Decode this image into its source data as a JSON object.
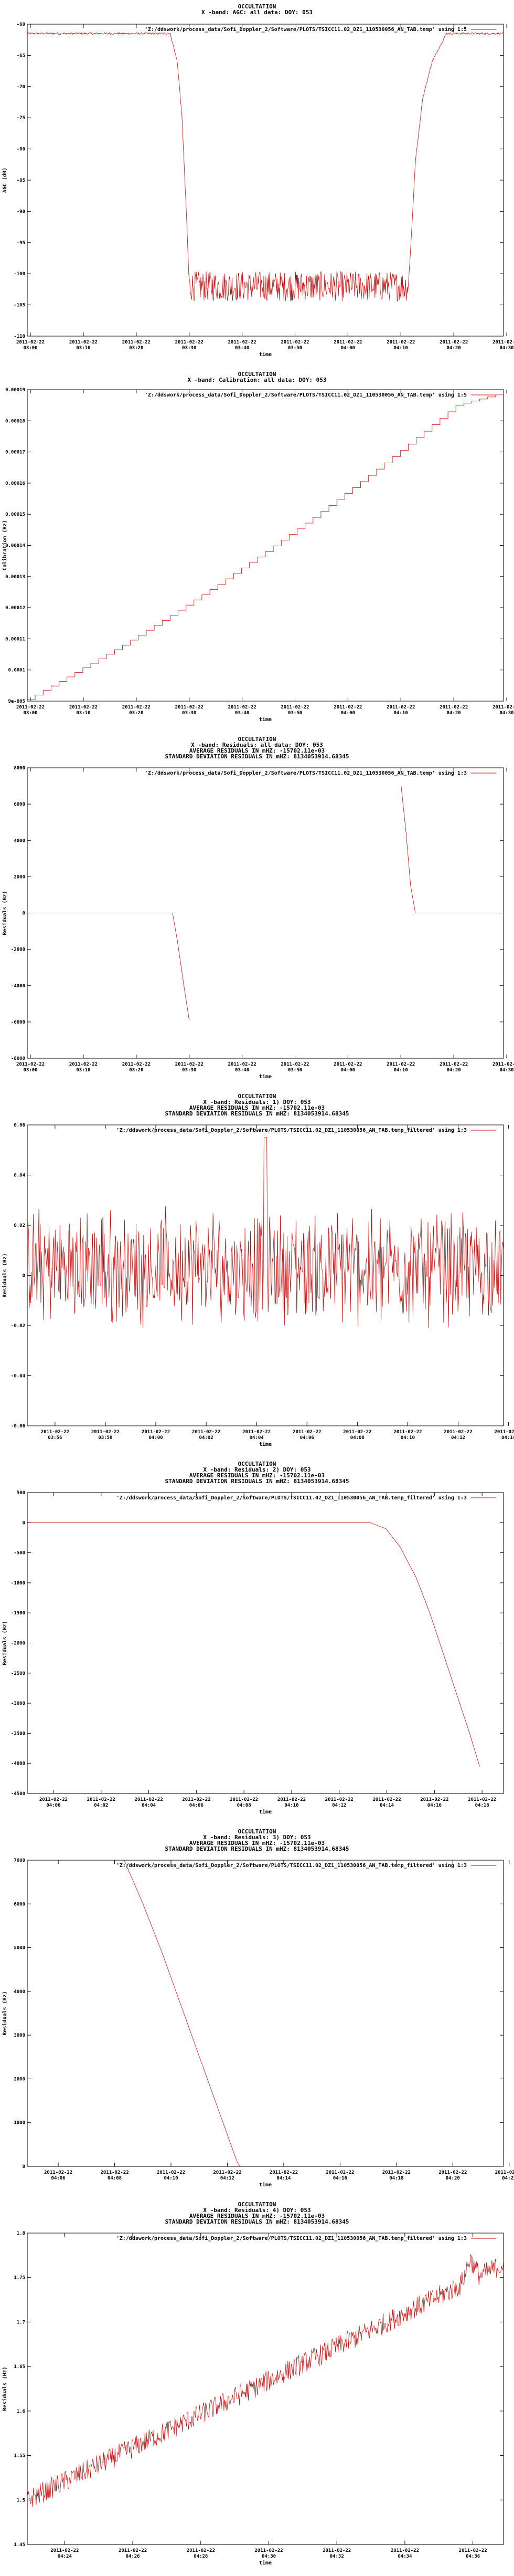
{
  "colors": {
    "series": "#cc0000",
    "axis": "#000000",
    "background": "#ffffff"
  },
  "chart_data": [
    {
      "type": "line",
      "title": [
        "OCCULTATION",
        "X -band: AGC: all data: DOY: 053"
      ],
      "legend": "'Z:/ddswork/process_data/Sofi_Doppler_2/Software/PLOTS/TSICC11.02_DZ1_110530056_AN_TAB.temp' using 1:5",
      "xlabel": "time",
      "ylabel": "AGC (dB)",
      "ylim": [
        -110,
        -60
      ],
      "ytick_labels": [
        "-110",
        "-105",
        "-100",
        "-95",
        "-90",
        "-85",
        "-80",
        "-75",
        "-70",
        "-65",
        "-60"
      ],
      "xtick_labels": [
        [
          "2011-02-22",
          "03:00"
        ],
        [
          "2011-02-22",
          "03:10"
        ],
        [
          "2011-02-22",
          "03:20"
        ],
        [
          "2011-02-22",
          "03:30"
        ],
        [
          "2011-02-22",
          "03:40"
        ],
        [
          "2011-02-22",
          "03:50"
        ],
        [
          "2011-02-22",
          "04:00"
        ],
        [
          "2011-02-22",
          "04:10"
        ],
        [
          "2011-02-22",
          "04:20"
        ],
        [
          "2011-02-22",
          "04:30"
        ]
      ],
      "xrange_minutes": [
        178,
        278
      ],
      "series": [
        {
          "points": [
            [
              178,
              -61.5
            ],
            [
              208,
              -61.5
            ],
            [
              209.5,
              -66
            ],
            [
              210.5,
              -75
            ],
            [
              211.5,
              -92
            ],
            [
              212,
              -102
            ],
            [
              258,
              -102
            ],
            [
              258.5,
              -96
            ],
            [
              259.5,
              -82
            ],
            [
              261,
              -72
            ],
            [
              263,
              -66
            ],
            [
              266,
              -61.5
            ],
            [
              278,
              -61.5
            ]
          ],
          "noise": 1.2,
          "noise_range": [
            212,
            258
          ]
        }
      ]
    },
    {
      "type": "line",
      "title": [
        "OCCULTATION",
        "X -band: Calibration: all data: DOY: 053"
      ],
      "legend": "'Z:/ddswork/process_data/Sofi_Doppler_2/Software/PLOTS/TSICC11.02_DZ1_110530056_AN_TAB.temp' using 1:5",
      "xlabel": "time",
      "ylabel": "Calibration (Hz)",
      "ylim": [
        9e-05,
        0.00019
      ],
      "ytick_labels": [
        "9e-005",
        "0.0001",
        "0.00011",
        "0.00012",
        "0.00013",
        "0.00014",
        "0.00015",
        "0.00016",
        "0.00017",
        "0.00018",
        "0.00019"
      ],
      "xtick_labels": [
        [
          "2011-02-22",
          "03:00"
        ],
        [
          "2011-02-22",
          "03:10"
        ],
        [
          "2011-02-22",
          "03:20"
        ],
        [
          "2011-02-22",
          "03:30"
        ],
        [
          "2011-02-22",
          "03:40"
        ],
        [
          "2011-02-22",
          "03:50"
        ],
        [
          "2011-02-22",
          "04:00"
        ],
        [
          "2011-02-22",
          "04:10"
        ],
        [
          "2011-02-22",
          "04:20"
        ],
        [
          "2011-02-22",
          "04:30"
        ]
      ],
      "xrange_minutes": [
        178,
        278
      ],
      "series": [
        {
          "points": [
            [
              178,
              9.05e-05
            ],
            [
              188,
              9.92e-05
            ],
            [
              198,
              0.000108
            ],
            [
              208,
              0.0001175
            ],
            [
              218,
              0.0001275
            ],
            [
              228,
              0.000138
            ],
            [
              238,
              0.000149
            ],
            [
              248,
              0.0001605
            ],
            [
              258,
              0.0001725
            ],
            [
              268,
              0.000185
            ],
            [
              278,
              0.000189
            ]
          ],
          "stairs": 1
        }
      ]
    },
    {
      "type": "line",
      "title": [
        "OCCULTATION",
        "X -band: Residuals: all data: DOY: 053",
        "AVERAGE RESIDUALS IN mHZ: -15702.11e-03",
        "STANDARD DEVIATION RESIDUALS IN mHZ: 8134053914.68345"
      ],
      "legend": "'Z:/ddswork/process_data/Sofi_Doppler_2/Software/PLOTS/TSICC11.02_DZ1_110530056_AN_TAB.temp' using 1:3",
      "xlabel": "time",
      "ylabel": "Residuals (Hz)",
      "ylim": [
        -8000,
        8000
      ],
      "ytick_labels": [
        "-8000",
        "-6000",
        "-4000",
        "-2000",
        "0",
        "2000",
        "4000",
        "6000",
        "8000"
      ],
      "xtick_labels": [
        [
          "2011-02-22",
          "03:00"
        ],
        [
          "2011-02-22",
          "03:10"
        ],
        [
          "2011-02-22",
          "03:20"
        ],
        [
          "2011-02-22",
          "03:30"
        ],
        [
          "2011-02-22",
          "03:40"
        ],
        [
          "2011-02-22",
          "03:50"
        ],
        [
          "2011-02-22",
          "04:00"
        ],
        [
          "2011-02-22",
          "04:10"
        ],
        [
          "2011-02-22",
          "04:20"
        ],
        [
          "2011-02-22",
          "04:30"
        ]
      ],
      "xrange_minutes": [
        178,
        278
      ],
      "series": [
        {
          "points": [
            [
              178,
              0
            ],
            [
              208.5,
              0
            ],
            [
              209.5,
              -1500
            ],
            [
              211,
              -4200
            ],
            [
              212,
              -5900
            ]
          ]
        },
        {
          "points": [
            [
              256.5,
              7000
            ],
            [
              257.5,
              4500
            ],
            [
              258.5,
              1500
            ],
            [
              259.5,
              0
            ],
            [
              278,
              0
            ]
          ]
        }
      ]
    },
    {
      "type": "line",
      "title": [
        "OCCULTATION",
        "X -band: Residuals: 1) DOY: 053",
        "AVERAGE RESIDUALS IN mHZ: -15702.11e-03",
        "STANDARD DEVIATION RESIDUALS IN mHZ: 8134053914.68345"
      ],
      "legend": "'Z:/ddswork/process_data/Sofi_Doppler_2/Software/PLOTS/TSICC11.02_DZ1_110530056_AN_TAB.temp_filtered' using 1:3",
      "xlabel": "time",
      "ylabel": "Residuals (Hz)",
      "ylim": [
        -0.06,
        0.06
      ],
      "ytick_labels": [
        "-0.06",
        "-0.04",
        "-0.02",
        "0",
        "0.02",
        "0.04",
        "0.06"
      ],
      "xtick_labels": [
        [
          "2011-02-22",
          "03:56"
        ],
        [
          "2011-02-22",
          "03:58"
        ],
        [
          "2011-02-22",
          "04:00"
        ],
        [
          "2011-02-22",
          "04:02"
        ],
        [
          "2011-02-22",
          "04:04"
        ],
        [
          "2011-02-22",
          "04:06"
        ],
        [
          "2011-02-22",
          "04:08"
        ],
        [
          "2011-02-22",
          "04:10"
        ],
        [
          "2011-02-22",
          "04:12"
        ],
        [
          "2011-02-22",
          "04:14"
        ]
      ],
      "xrange_minutes": [
        234.8,
        254.2
      ],
      "series": [
        {
          "noise_walk": {
            "n": 700,
            "amp": 0.018,
            "center": 0.003,
            "spike_at": 0.5,
            "spike": 0.055
          }
        }
      ]
    },
    {
      "type": "line",
      "title": [
        "OCCULTATION",
        "X -band: Residuals: 2) DOY: 053",
        "AVERAGE RESIDUALS IN mHZ: -15702.11e-03",
        "STANDARD DEVIATION RESIDUALS IN mHZ: 8134053914.68345"
      ],
      "legend": "'Z:/ddswork/process_data/Sofi_Doppler_2/Software/PLOTS/TSICC11.02_DZ1_110530056_AN_TAB.temp_filtered' using 1:3",
      "xlabel": "time",
      "ylabel": "Residuals (Hz)",
      "ylim": [
        -4500,
        500
      ],
      "ytick_labels": [
        "-4500",
        "-4000",
        "-3500",
        "-3000",
        "-2500",
        "-2000",
        "-1500",
        "-1000",
        "-500",
        "0",
        "500"
      ],
      "xtick_labels": [
        [
          "2011-02-22",
          "04:00"
        ],
        [
          "2011-02-22",
          "04:02"
        ],
        [
          "2011-02-22",
          "04:04"
        ],
        [
          "2011-02-22",
          "04:06"
        ],
        [
          "2011-02-22",
          "04:08"
        ],
        [
          "2011-02-22",
          "04:10"
        ],
        [
          "2011-02-22",
          "04:12"
        ],
        [
          "2011-02-22",
          "04:14"
        ],
        [
          "2011-02-22",
          "04:16"
        ],
        [
          "2011-02-22",
          "04:18"
        ],
        [
          "2011-02-22",
          "04:20"
        ]
      ],
      "xrange_minutes": [
        237.3,
        261.2
      ],
      "series": [
        {
          "points": [
            [
              237.3,
              0
            ],
            [
              254.5,
              0
            ],
            [
              255.3,
              -100
            ],
            [
              256.0,
              -400
            ],
            [
              256.8,
              -900
            ],
            [
              257.5,
              -1500
            ],
            [
              258.2,
              -2200
            ],
            [
              258.9,
              -2900
            ],
            [
              259.5,
              -3500
            ],
            [
              260.0,
              -4050
            ]
          ]
        }
      ]
    },
    {
      "type": "line",
      "title": [
        "OCCULTATION",
        "X -band: Residuals: 3) DOY: 053",
        "AVERAGE RESIDUALS IN mHZ: -15702.11e-03",
        "STANDARD DEVIATION RESIDUALS IN mHZ: 8134053914.68345"
      ],
      "legend": "'Z:/ddswork/process_data/Sofi_Doppler_2/Software/PLOTS/TSICC11.02_DZ1_110530056_AN_TAB.temp_filtered' using 1:3",
      "xlabel": "time",
      "ylabel": "Residuals (Hz)",
      "ylim": [
        0,
        7000
      ],
      "ytick_labels": [
        "0",
        "1000",
        "2000",
        "3000",
        "4000",
        "5000",
        "6000",
        "7000"
      ],
      "xtick_labels": [
        [
          "2011-02-22",
          "04:06"
        ],
        [
          "2011-02-22",
          "04:08"
        ],
        [
          "2011-02-22",
          "04:10"
        ],
        [
          "2011-02-22",
          "04:12"
        ],
        [
          "2011-02-22",
          "04:14"
        ],
        [
          "2011-02-22",
          "04:16"
        ],
        [
          "2011-02-22",
          "04:18"
        ],
        [
          "2011-02-22",
          "04:20"
        ],
        [
          "2011-02-22",
          "04:22"
        ]
      ],
      "xrange_minutes": [
        244.5,
        262.2
      ],
      "series": [
        {
          "points": [
            [
              248.1,
              7000
            ],
            [
              248.8,
              6000
            ],
            [
              249.5,
              4900
            ],
            [
              250.2,
              3700
            ],
            [
              250.9,
              2500
            ],
            [
              251.6,
              1300
            ],
            [
              252.3,
              100
            ],
            [
              252.4,
              0
            ]
          ]
        }
      ]
    },
    {
      "type": "line",
      "title": [
        "OCCULTATION",
        "X -band: Residuals: 4) DOY: 053",
        "AVERAGE RESIDUALS IN mHZ: -15702.11e-03",
        "STANDARD DEVIATION RESIDUALS IN mHZ: 8134053914.68345"
      ],
      "legend": "'Z:/ddswork/process_data/Sofi_Doppler_2/Software/PLOTS/TSICC11.02_DZ1_110530056_AN_TAB.temp_filtered' using 1:3",
      "xlabel": "time",
      "ylabel": "Residuals (Hz)",
      "ylim": [
        1.45,
        1.8
      ],
      "ytick_labels": [
        "1.45",
        "1.5",
        "1.55",
        "1.6",
        "1.65",
        "1.7",
        "1.75",
        "1.8"
      ],
      "xtick_labels": [
        [
          "2011-02-22",
          "04:24"
        ],
        [
          "2011-02-22",
          "04:26"
        ],
        [
          "2011-02-22",
          "04:28"
        ],
        [
          "2011-02-22",
          "04:30"
        ],
        [
          "2011-02-22",
          "04:32"
        ],
        [
          "2011-02-22",
          "04:34"
        ],
        [
          "2011-02-22",
          "04:36"
        ],
        [
          "2011-02-22",
          "04:38"
        ]
      ],
      "xrange_minutes": [
        262.5,
        278.7
      ],
      "series": [
        {
          "noise_trend": {
            "n": 700,
            "from": 1.5,
            "to": 1.765,
            "amp": 0.012,
            "bump_at": 0.93,
            "bump": 0.025
          }
        }
      ]
    }
  ]
}
